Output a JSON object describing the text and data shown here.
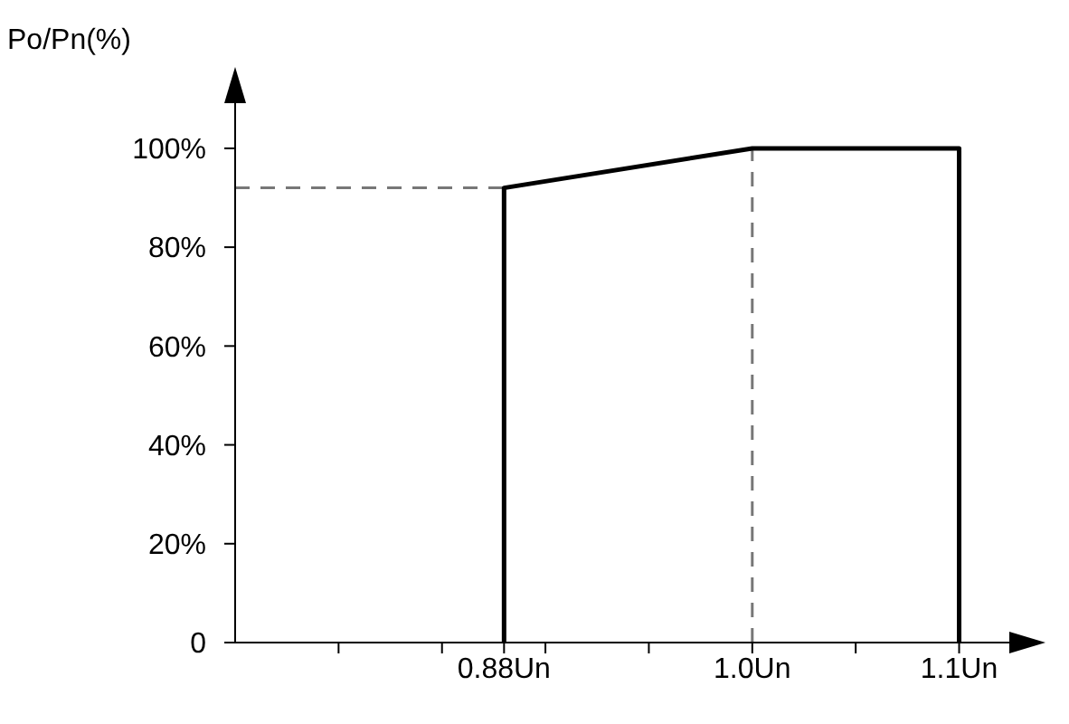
{
  "chart_data": {
    "type": "line",
    "ylabel": "Po/Pn(%)",
    "xlim": [
      0.75,
      1.14
    ],
    "ylim": [
      0,
      115
    ],
    "xticks": [
      {
        "value": 0.8,
        "label": null
      },
      {
        "value": 0.85,
        "label": null
      },
      {
        "value": 0.88,
        "label": "0.88Un"
      },
      {
        "value": 0.9,
        "label": null
      },
      {
        "value": 0.95,
        "label": null
      },
      {
        "value": 1.0,
        "label": "1.0Un"
      },
      {
        "value": 1.05,
        "label": null
      },
      {
        "value": 1.1,
        "label": "1.1Un"
      }
    ],
    "yticks": [
      0,
      {
        "value": 20,
        "label": "20%"
      },
      {
        "value": 40,
        "label": "40%"
      },
      {
        "value": 60,
        "label": "60%"
      },
      {
        "value": 80,
        "label": "80%"
      },
      {
        "value": 100,
        "label": "100%"
      }
    ],
    "series": [
      {
        "color": "#000000",
        "x": [
          0.88,
          0.88,
          1.0,
          1.1,
          1.1
        ],
        "values": [
          0,
          92,
          100,
          100,
          0
        ]
      }
    ],
    "ref_lines": [
      {
        "axis": "y",
        "value": 92,
        "line_style": "dashed",
        "color": "#777777"
      },
      {
        "axis": "x",
        "value": 1.0,
        "line_style": "dashed",
        "color": "#777777"
      }
    ],
    "marker": "none",
    "line_style": "solid"
  }
}
